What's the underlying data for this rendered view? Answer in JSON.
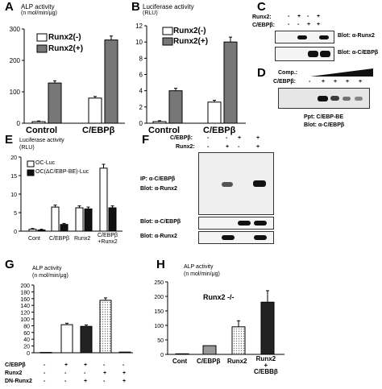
{
  "panels": {
    "A": {
      "label": "A",
      "title_line1": "ALP activity",
      "title_line2": "(n mol/min/μg)",
      "legend": [
        "Runx2(-)",
        "Runx2(+)"
      ],
      "yticks": [
        "0",
        "100",
        "200",
        "300"
      ],
      "categories": [
        "Control",
        "C/EBPβ"
      ]
    },
    "B": {
      "label": "B",
      "title_line1": "Luciferase activity",
      "title_line2": "(RLU)",
      "legend": [
        "Runx2(-)",
        "Runx2(+)"
      ],
      "yticks": [
        "0",
        "2",
        "4",
        "6",
        "8",
        "10",
        "12"
      ],
      "categories": [
        "Control",
        "C/EBPβ"
      ]
    },
    "C": {
      "label": "C",
      "row1": "Runx2:",
      "row2": "C/EBPβ:",
      "row1_signs": [
        "-",
        "+",
        "-",
        "+"
      ],
      "row2_signs": [
        "-",
        "-",
        "+",
        "+"
      ],
      "blot1": "Blot: α-Runx2",
      "blot2": "Blot: α-C/EBPβ"
    },
    "D": {
      "label": "D",
      "comp": "Comp.:",
      "cebp": "C/EBPβ:",
      "signs": [
        "-",
        "+",
        "+",
        "+",
        "+"
      ],
      "caption1": "Ppt: C/EBP-BE",
      "caption2": "Blot: α-C/EBPβ"
    },
    "E": {
      "label": "E",
      "title_line1": "Luciferase activity",
      "title_line2": "(RLU)",
      "legend": [
        "OC-Luc",
        "OC(ΔC/EBP-BE)-Luc"
      ],
      "yticks": [
        "0",
        "5",
        "10",
        "15",
        "20"
      ],
      "categories": [
        "Cont",
        "C/EBPβ",
        "Runx2",
        "C/EBPβ\n+Runx2"
      ]
    },
    "F": {
      "label": "F",
      "row1": "C/EBPβ:",
      "row2": "Runx2:",
      "row1_signs": [
        "-",
        "-",
        "+",
        "+"
      ],
      "row2_signs": [
        "-",
        "+",
        "-",
        "+"
      ],
      "ip1": "IP: α-C/EBPβ",
      "ip2": "Blot: α-Runx2",
      "blot1": "Blot: α-C/EBPβ",
      "blot2": "Blot: α-Runx2"
    },
    "G": {
      "label": "G",
      "title_line1": "ALP activity",
      "title_line2": "(n mol/min/μg)",
      "yticks": [
        "0",
        "20",
        "40",
        "60",
        "80",
        "100",
        "120",
        "140",
        "160",
        "180",
        "200"
      ],
      "row_labels": [
        "C/EBPβ",
        "Runx2",
        "DN-Runx2"
      ],
      "rows": [
        [
          "-",
          "+",
          "+",
          "-",
          "-"
        ],
        [
          "-",
          "-",
          "-",
          "+",
          "+"
        ],
        [
          "-",
          "-",
          "+",
          "-",
          "+"
        ]
      ]
    },
    "H": {
      "label": "H",
      "title_line1": "ALP activity",
      "title_line2": "(n mol/min/μg)",
      "genotype": "Runx2 -/-",
      "yticks": [
        "0",
        "50",
        "100",
        "150",
        "200",
        "250"
      ],
      "categories": [
        "Cont",
        "C/EBPβ",
        "Runx2",
        "Runx2\n+\nC/EBBβ"
      ]
    }
  },
  "chart_data": [
    {
      "type": "bar",
      "panel": "A",
      "categories": [
        "Control",
        "C/EBPβ"
      ],
      "series": [
        {
          "name": "Runx2(-)",
          "values": [
            5,
            80
          ]
        },
        {
          "name": "Runx2(+)",
          "values": [
            128,
            265
          ]
        }
      ],
      "ylim": [
        0,
        300
      ]
    },
    {
      "type": "bar",
      "panel": "B",
      "categories": [
        "Control",
        "C/EBPβ"
      ],
      "series": [
        {
          "name": "Runx2(-)",
          "values": [
            0.2,
            2.6
          ]
        },
        {
          "name": "Runx2(+)",
          "values": [
            4.0,
            10.0
          ]
        }
      ],
      "ylim": [
        0,
        12
      ]
    },
    {
      "type": "bar",
      "panel": "E",
      "categories": [
        "Cont",
        "C/EBPβ",
        "Runx2",
        "C/EBPβ+Runx2"
      ],
      "series": [
        {
          "name": "OC-Luc",
          "values": [
            0.5,
            6.5,
            6.3,
            17.0
          ]
        },
        {
          "name": "OC(ΔC/EBP-BE)-Luc",
          "values": [
            0.3,
            1.8,
            6.0,
            6.3
          ]
        }
      ],
      "ylim": [
        0,
        20
      ]
    },
    {
      "type": "bar",
      "panel": "G",
      "categories": [
        "1",
        "2",
        "3",
        "4",
        "5"
      ],
      "values": [
        1,
        83,
        78,
        155,
        2
      ],
      "ylim": [
        0,
        200
      ]
    },
    {
      "type": "bar",
      "panel": "H",
      "categories": [
        "Cont",
        "C/EBPβ",
        "Runx2",
        "Runx2+C/EBBβ"
      ],
      "values": [
        2,
        30,
        95,
        180
      ],
      "ylim": [
        0,
        250
      ]
    }
  ]
}
